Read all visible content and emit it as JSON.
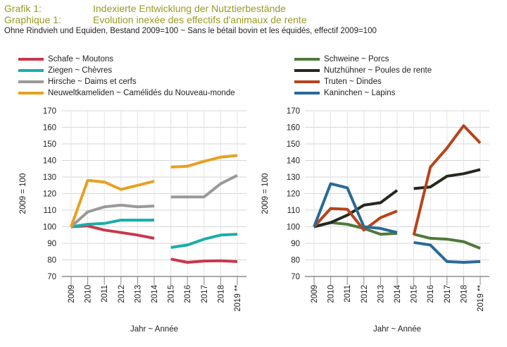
{
  "header": {
    "line1_label": "Grafik 1:",
    "line1_title": "Indexierte Entwicklung der Nutztierbestände",
    "line2_label": "Graphique 1:",
    "line2_title": "Evolution inexée des effectifs d'animaux de rente",
    "subtitle": "Ohne Rindvieh und Equiden, Bestand 2009=100   ~   Sans le bétail bovin et les équidés, effectif 2009=100"
  },
  "chart_data": [
    {
      "type": "line",
      "ylabel": "2009 = 100",
      "xlabel": "Jahr   ~   Année",
      "ylim": [
        70,
        170
      ],
      "yticks": [
        70,
        80,
        90,
        100,
        110,
        120,
        130,
        140,
        150,
        160,
        170
      ],
      "x": [
        "2009",
        "2010",
        "2011",
        "2012",
        "2013",
        "2014",
        "2015",
        "2016",
        "2017",
        "2018",
        "2019 **"
      ],
      "grid": true,
      "legend_position": "top",
      "series": [
        {
          "name": "Schafe   ~   Moutons",
          "color": "#c8374b",
          "values": [
            100,
            100.5,
            98,
            96.5,
            95,
            93,
            80.5,
            78.5,
            79.3,
            79.5,
            79
          ]
        },
        {
          "name": "Ziegen   ~   Chèvres",
          "color": "#1aada8",
          "values": [
            100,
            101.5,
            102,
            104,
            104,
            104,
            87.5,
            89,
            92.5,
            95,
            95.5
          ]
        },
        {
          "name": "Hirsche   ~   Daims et cerfs",
          "color": "#9c9898",
          "values": [
            100,
            109,
            112,
            113,
            112,
            112.5,
            118,
            118,
            118,
            126,
            131
          ]
        },
        {
          "name": "Neuweltkameliden   ~   Camélidés du Nouveau-monde",
          "color": "#e8a020",
          "values": [
            100,
            128,
            127,
            122.5,
            125,
            127.5,
            136,
            136.5,
            139.5,
            142,
            143
          ]
        }
      ],
      "break_after": "2014"
    },
    {
      "type": "line",
      "ylabel": "2009 = 100",
      "xlabel": "Jahr   ~   Année",
      "ylim": [
        70,
        170
      ],
      "yticks": [
        70,
        80,
        90,
        100,
        110,
        120,
        130,
        140,
        150,
        160,
        170
      ],
      "x": [
        "2009",
        "2010",
        "2011",
        "2012",
        "2013",
        "2014",
        "2015",
        "2016",
        "2017",
        "2018",
        "2019 **"
      ],
      "grid": true,
      "legend_position": "top",
      "series": [
        {
          "name": "Schweine   ~   Porcs",
          "color": "#4f7a3a",
          "values": [
            100,
            102.5,
            101.5,
            99,
            95.5,
            96,
            95.5,
            93,
            92.5,
            91,
            87
          ]
        },
        {
          "name": "Nutzhühner   ~   Poules de rente",
          "color": "#25281c",
          "values": [
            100,
            102.5,
            107,
            113,
            114.5,
            122,
            123,
            124,
            130.5,
            132,
            134.5
          ]
        },
        {
          "name": "Truten   ~   Dindes",
          "color": "#b8431a",
          "values": [
            100,
            111,
            110.5,
            98,
            105.5,
            109.5,
            95,
            136,
            147.5,
            161,
            150.5
          ]
        },
        {
          "name": "Kaninchen   ~   Lapins",
          "color": "#2a6a96",
          "values": [
            100,
            126,
            123.5,
            100,
            99,
            96.5,
            90.5,
            89,
            79,
            78.5,
            79
          ]
        }
      ],
      "break_after": "2014"
    }
  ]
}
